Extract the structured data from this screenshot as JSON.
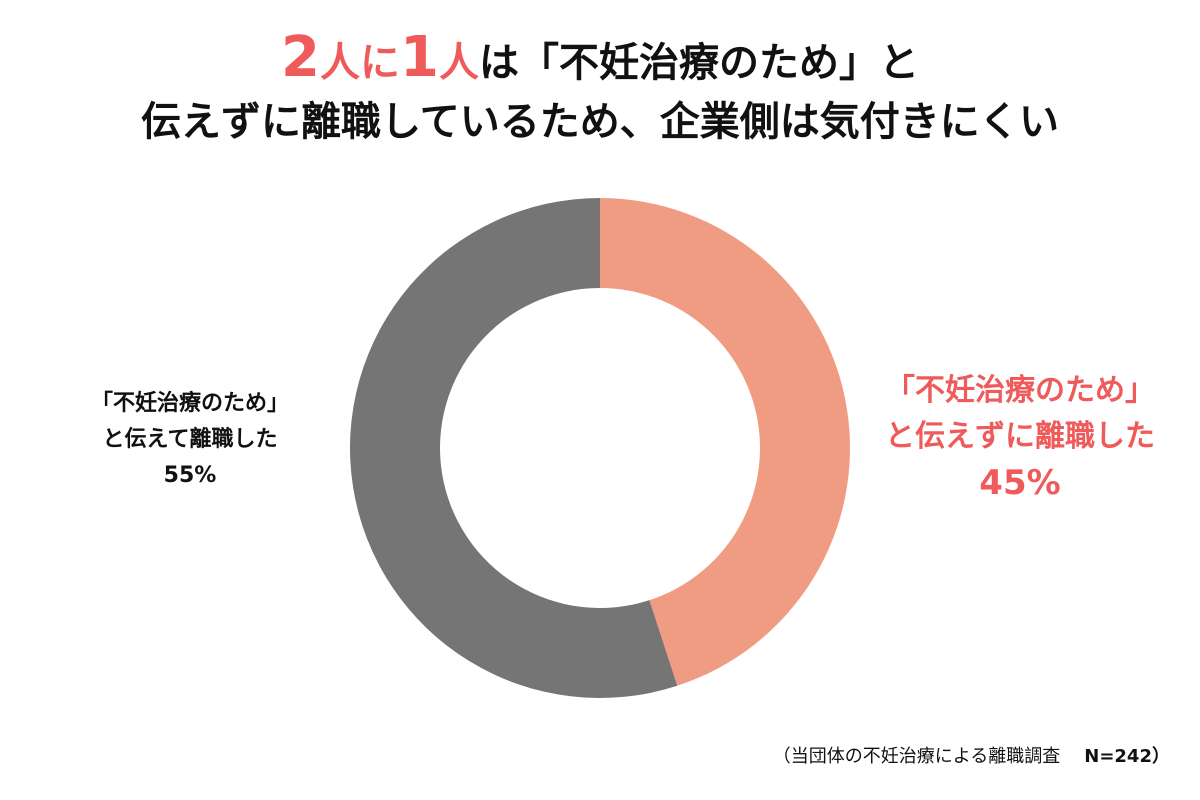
{
  "header": {
    "line1": {
      "num1": "2",
      "unit1": "人に",
      "num2": "1",
      "unit2": "人",
      "rest": "は「不妊治療のため」と"
    },
    "line2": "伝えずに離職しているため、企業側は気付きにくい"
  },
  "colors": {
    "accent": "#ef5b5b",
    "salmon": "#f09c83",
    "gray": "#757575"
  },
  "chart_data": {
    "type": "pie",
    "donut": true,
    "slices": [
      {
        "label_line1": "「不妊治療のため」",
        "label_line2": "と伝えずに離職した",
        "value": 45,
        "value_label": "45%",
        "color": "#f09c83"
      },
      {
        "label_line1": "「不妊治療のため」",
        "label_line2": "と伝えて離職した",
        "value": 55,
        "value_label": "55%",
        "color": "#757575"
      }
    ]
  },
  "footnote": {
    "text": "（当団体の不妊治療による離職調査",
    "n": "N=242）"
  }
}
